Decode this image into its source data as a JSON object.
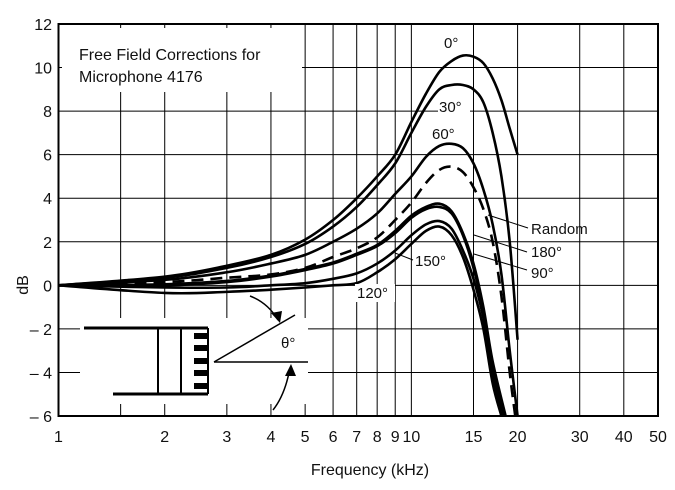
{
  "chart_data": {
    "type": "line",
    "title": "Free Field Corrections for",
    "title_line2": "Microphone 4176",
    "xlabel": "Frequency (kHz)",
    "ylabel": "dB",
    "xscale": "log",
    "xlim": [
      1,
      50
    ],
    "ylim": [
      -6,
      12
    ],
    "grid": true,
    "x_ticks": [
      1,
      2,
      3,
      4,
      5,
      6,
      7,
      8,
      9,
      10,
      15,
      20,
      30,
      40,
      50
    ],
    "x_tick_labels": [
      "1",
      "2",
      "3",
      "4",
      "5",
      "6",
      "7",
      "8",
      "9",
      "10",
      "15",
      "20",
      "30",
      "40",
      "50"
    ],
    "x_grid": [
      1,
      1.5,
      2,
      3,
      4,
      5,
      6,
      7,
      8,
      9,
      10,
      15,
      20,
      30,
      40,
      50
    ],
    "y_ticks": [
      12,
      10,
      8,
      6,
      4,
      2,
      0,
      -2,
      -4,
      -6
    ],
    "y_tick_labels": [
      "12",
      "10",
      "8",
      "6",
      "4",
      "2",
      "0",
      "– 2",
      "– 4",
      "– 6"
    ],
    "inset_label": "θ°",
    "series": [
      {
        "name": "0°",
        "dash": false,
        "x": [
          1,
          2,
          3,
          4,
          5,
          6,
          7,
          8,
          9,
          10,
          11,
          12,
          13,
          14,
          15,
          16,
          17,
          18,
          19,
          20
        ],
        "y": [
          0,
          0.4,
          0.9,
          1.4,
          2.1,
          3,
          4,
          5,
          6,
          7.5,
          8.8,
          9.8,
          10.3,
          10.55,
          10.5,
          10.2,
          9.5,
          8.5,
          7.2,
          6
        ]
      },
      {
        "name": "30°",
        "dash": false,
        "x": [
          1,
          2,
          3,
          4,
          5,
          6,
          7,
          8,
          9,
          10,
          11,
          12,
          13,
          14,
          15,
          16,
          17,
          18,
          19,
          20
        ],
        "y": [
          0,
          0.35,
          0.8,
          1.3,
          1.9,
          2.7,
          3.6,
          4.6,
          5.6,
          7,
          8.2,
          9,
          9.2,
          9.2,
          9,
          8.4,
          7,
          5,
          2,
          -2.5
        ]
      },
      {
        "name": "60°",
        "dash": false,
        "x": [
          1,
          2,
          3,
          4,
          5,
          6,
          7,
          8,
          9,
          10,
          11,
          12,
          13,
          14,
          15,
          16,
          17,
          18,
          19,
          20
        ],
        "y": [
          0,
          0.25,
          0.6,
          1,
          1.4,
          2,
          2.6,
          3.3,
          4.2,
          5,
          5.9,
          6.4,
          6.5,
          6.3,
          5.6,
          4.4,
          2.8,
          0.5,
          -3,
          -6
        ]
      },
      {
        "name": "Random",
        "dash": true,
        "x": [
          1,
          2,
          3,
          4,
          5,
          6,
          7,
          8,
          9,
          10,
          11,
          12,
          13,
          14,
          15,
          16,
          17,
          18,
          19,
          19.7
        ],
        "y": [
          0,
          0.15,
          0.35,
          0.5,
          0.8,
          1.3,
          1.7,
          2.2,
          3,
          3.8,
          4.7,
          5.3,
          5.45,
          5.2,
          4.5,
          3.5,
          2,
          -0.5,
          -4,
          -6
        ]
      },
      {
        "name": "180°",
        "dash": false,
        "x": [
          1,
          2,
          3,
          4,
          5,
          6,
          7,
          8,
          9,
          10,
          11,
          12,
          13,
          14,
          15,
          16,
          17,
          18.5
        ],
        "y": [
          0,
          0.05,
          0.2,
          0.45,
          0.75,
          1.05,
          1.45,
          1.85,
          2.5,
          3.2,
          3.6,
          3.75,
          3.4,
          2.4,
          1,
          -1,
          -3.5,
          -6
        ]
      },
      {
        "name": "90°",
        "dash": false,
        "x": [
          1,
          2,
          3,
          4,
          5,
          6,
          7,
          8,
          9,
          10,
          11,
          12,
          13,
          14,
          15,
          16,
          17,
          18.3
        ],
        "y": [
          0,
          0,
          0.15,
          0.4,
          0.7,
          1,
          1.4,
          1.8,
          2.4,
          3.1,
          3.5,
          3.6,
          3.3,
          2.3,
          0.8,
          -1.2,
          -3.8,
          -6
        ]
      },
      {
        "name": "150°",
        "dash": false,
        "x": [
          1,
          2,
          3,
          4,
          5,
          6,
          7,
          8,
          9,
          10,
          11,
          12,
          13,
          14,
          15,
          16,
          17,
          18
        ],
        "y": [
          0,
          -0.1,
          -0.1,
          0,
          0.1,
          0.3,
          0.55,
          1,
          1.6,
          2.3,
          2.8,
          2.95,
          2.6,
          1.6,
          0.3,
          -1.5,
          -4,
          -6
        ]
      },
      {
        "name": "120°",
        "dash": false,
        "x": [
          1,
          2,
          3,
          4,
          5,
          6,
          7,
          8,
          9,
          10,
          11,
          12,
          13,
          14,
          15,
          16,
          17,
          18
        ],
        "y": [
          0,
          -0.35,
          -0.3,
          -0.2,
          -0.1,
          0,
          0.1,
          0.6,
          1.2,
          1.9,
          2.5,
          2.7,
          2.3,
          1.3,
          -0.2,
          -2,
          -4.5,
          -6
        ]
      }
    ]
  }
}
